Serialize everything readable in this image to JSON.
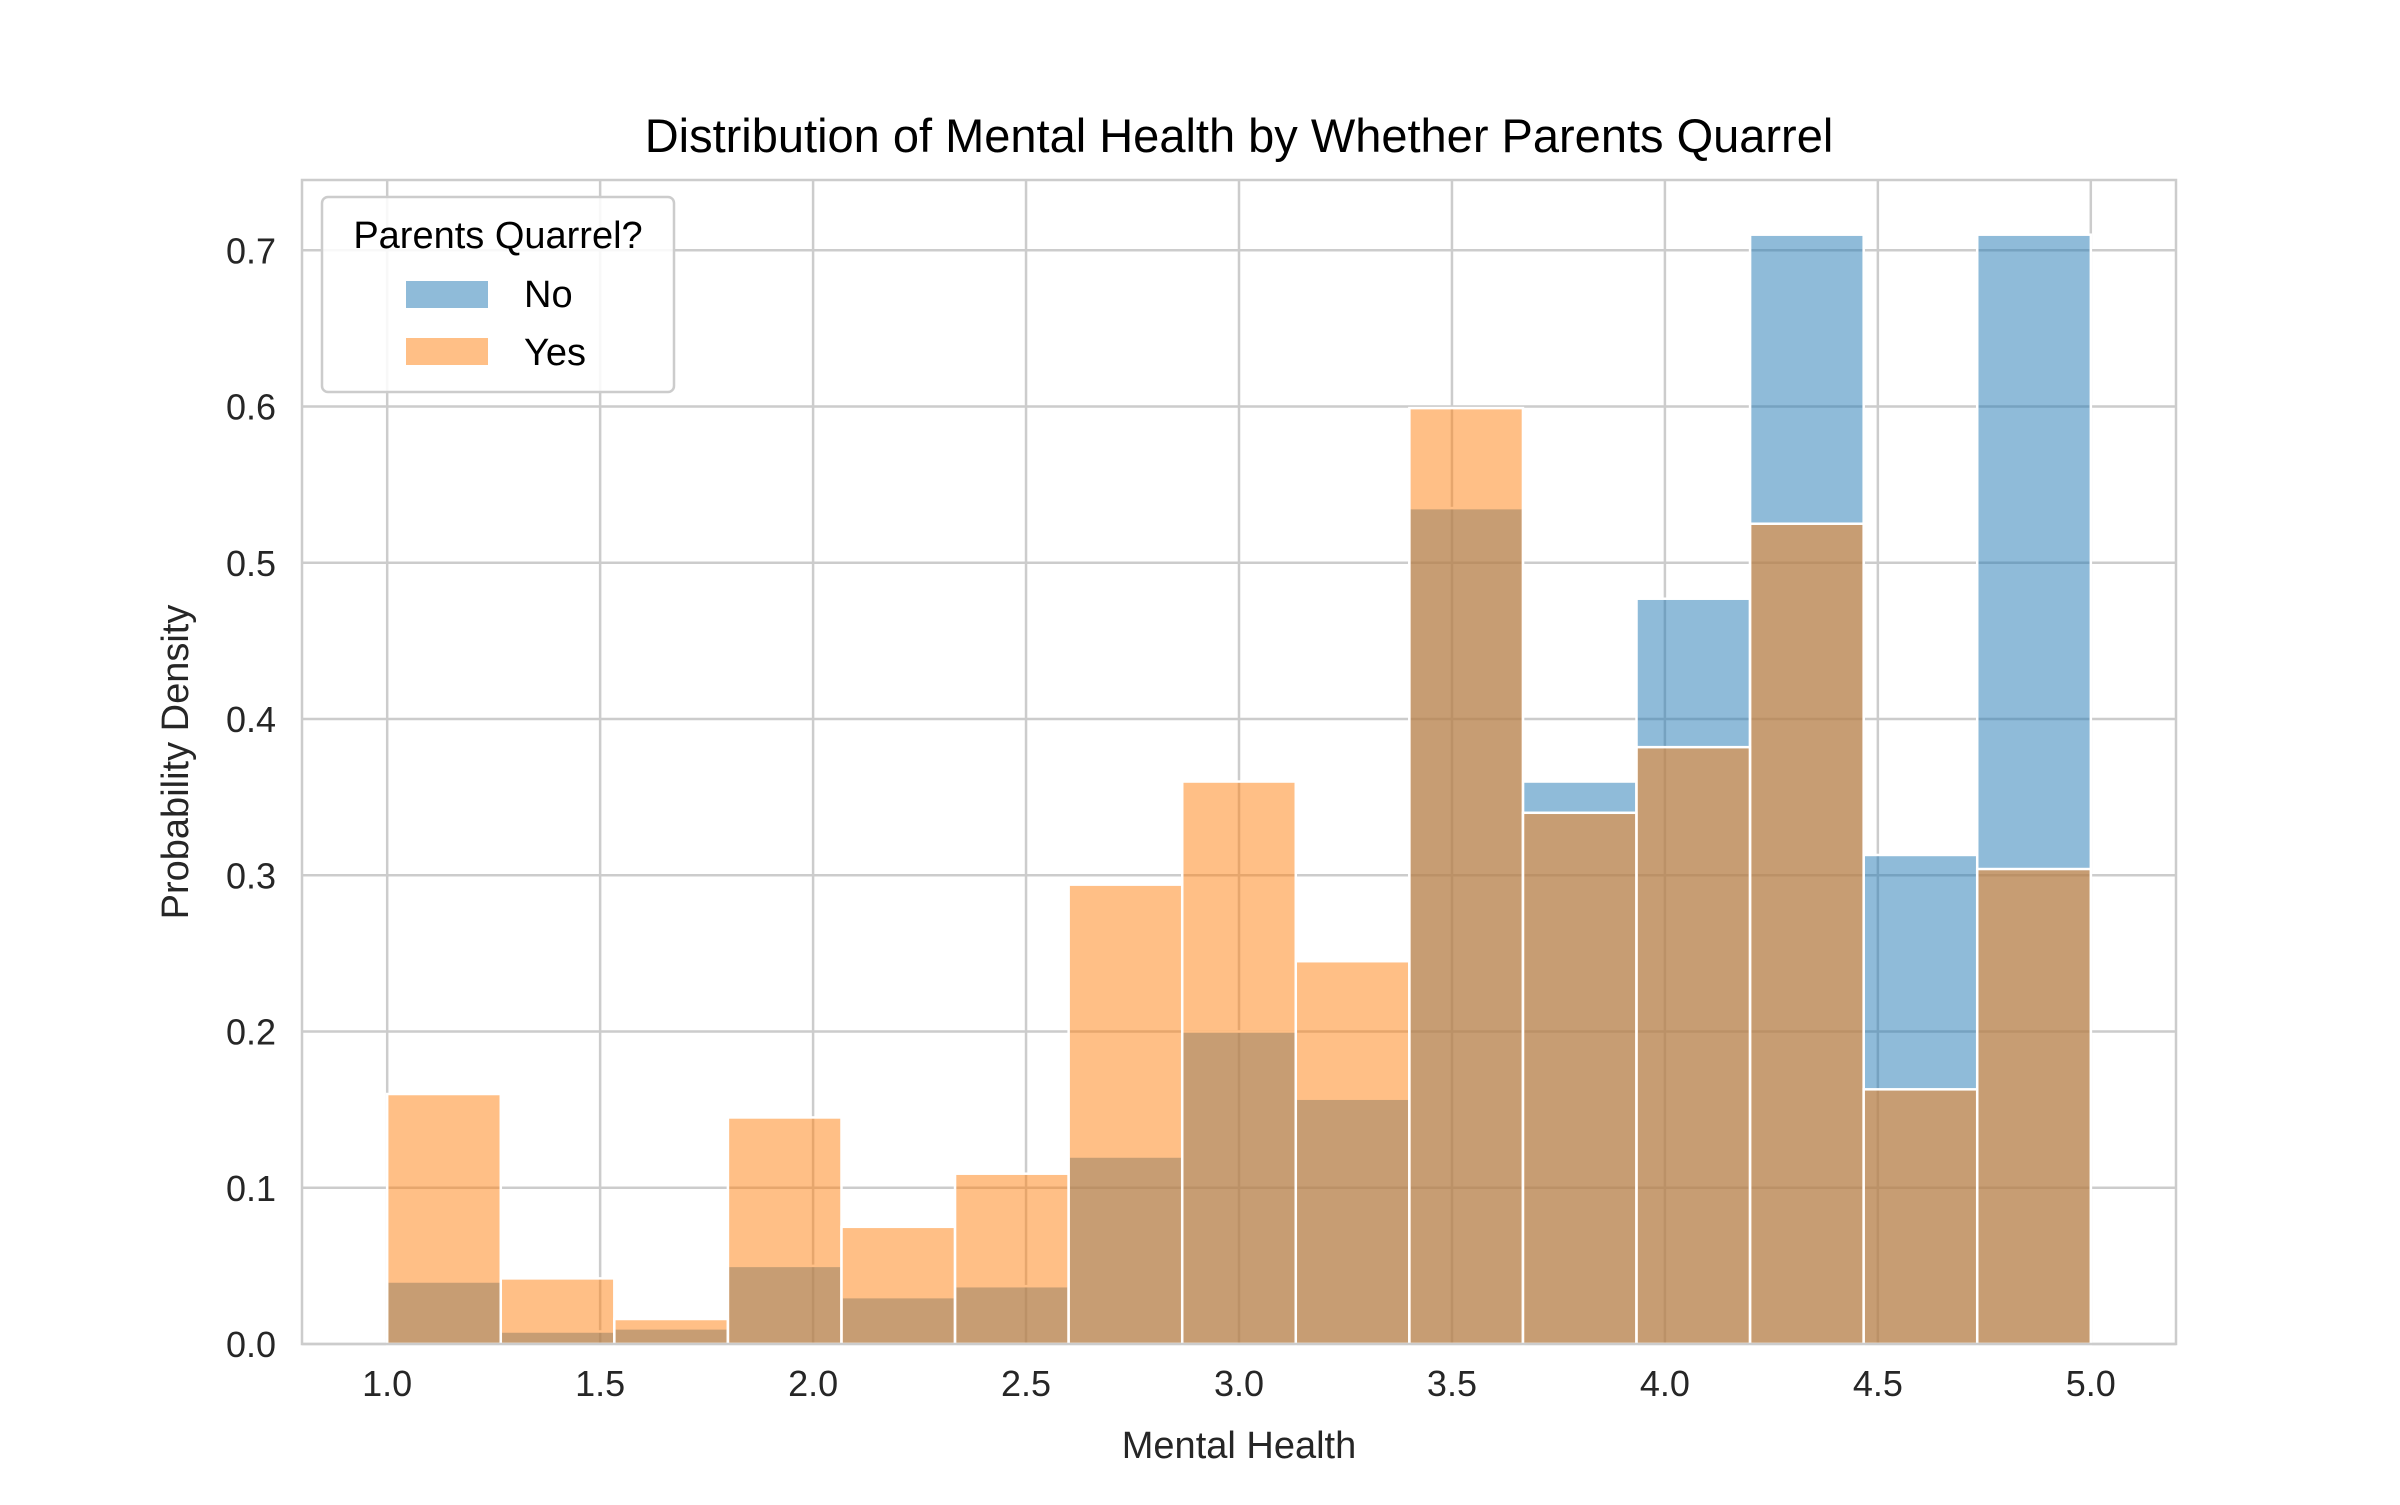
{
  "chart_data": {
    "type": "bar",
    "title": "Distribution of Mental Health by Whether Parents Quarrel",
    "xlabel": "Mental Health",
    "ylabel": "Probability Density",
    "xlim": [
      0.8,
      5.2
    ],
    "ylim": [
      0,
      0.745
    ],
    "xticks": [
      1.0,
      1.5,
      2.0,
      2.5,
      3.0,
      3.5,
      4.0,
      4.5,
      5.0
    ],
    "yticks": [
      0.0,
      0.1,
      0.2,
      0.3,
      0.4,
      0.5,
      0.6,
      0.7
    ],
    "grid": true,
    "bin_edges": [
      1.0,
      1.2667,
      1.5333,
      1.8,
      2.0667,
      2.3333,
      2.6,
      2.8667,
      3.1333,
      3.4,
      3.6667,
      3.9333,
      4.2,
      4.4667,
      4.7333,
      5.0
    ],
    "legend": {
      "title": "Parents Quarrel?",
      "placement": "upper-left"
    },
    "series": [
      {
        "name": "No",
        "color": "#1f77b4",
        "values": [
          0.04,
          0.008,
          0.01,
          0.05,
          0.03,
          0.037,
          0.12,
          0.2,
          0.157,
          0.535,
          0.36,
          0.477,
          0.71,
          0.313,
          0.71
        ]
      },
      {
        "name": "Yes",
        "color": "#ff7f0e",
        "values": [
          0.16,
          0.042,
          0.016,
          0.145,
          0.075,
          0.109,
          0.294,
          0.36,
          0.245,
          0.599,
          0.34,
          0.382,
          0.525,
          0.163,
          0.304
        ]
      }
    ]
  }
}
